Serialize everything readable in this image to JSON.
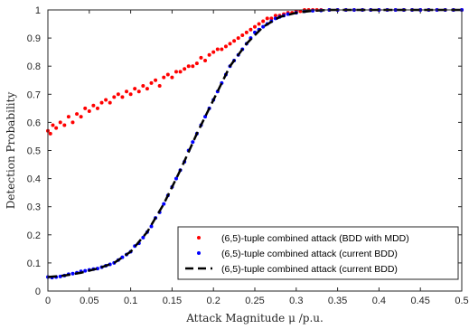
{
  "chart_data": {
    "type": "scatter",
    "xlabel": "Attack Magnitude μ /p.u.",
    "ylabel": "Detection Probability",
    "xlim": [
      0,
      0.5
    ],
    "ylim": [
      0,
      1
    ],
    "xticks": [
      "0",
      "0.05",
      "0.1",
      "0.15",
      "0.2",
      "0.25",
      "0.3",
      "0.35",
      "0.4",
      "0.45",
      "0.5"
    ],
    "yticks": [
      "0",
      "0.1",
      "0.2",
      "0.3",
      "0.4",
      "0.5",
      "0.6",
      "0.7",
      "0.8",
      "0.9",
      "1"
    ],
    "grid": false,
    "legend_position": "bottom-right",
    "series": [
      {
        "name": "(6,5)-tuple combined attack (BDD with MDD)",
        "style": "red-dots",
        "color": "#ff0000",
        "x": [
          0.0,
          0.003,
          0.006,
          0.01,
          0.015,
          0.02,
          0.025,
          0.03,
          0.035,
          0.04,
          0.045,
          0.05,
          0.055,
          0.06,
          0.065,
          0.07,
          0.075,
          0.08,
          0.085,
          0.09,
          0.095,
          0.1,
          0.105,
          0.11,
          0.115,
          0.12,
          0.125,
          0.13,
          0.135,
          0.14,
          0.145,
          0.15,
          0.155,
          0.16,
          0.165,
          0.17,
          0.175,
          0.18,
          0.185,
          0.19,
          0.195,
          0.2,
          0.205,
          0.21,
          0.215,
          0.22,
          0.225,
          0.23,
          0.235,
          0.24,
          0.245,
          0.25,
          0.255,
          0.26,
          0.265,
          0.27,
          0.275,
          0.28,
          0.285,
          0.29,
          0.295,
          0.3,
          0.305,
          0.31,
          0.315,
          0.32,
          0.325,
          0.33,
          0.34,
          0.35,
          0.36,
          0.37,
          0.38,
          0.39,
          0.4,
          0.41,
          0.42,
          0.43,
          0.44,
          0.45,
          0.46,
          0.47,
          0.48,
          0.49,
          0.5
        ],
        "y": [
          0.57,
          0.56,
          0.59,
          0.58,
          0.6,
          0.59,
          0.62,
          0.6,
          0.63,
          0.62,
          0.65,
          0.64,
          0.66,
          0.65,
          0.67,
          0.68,
          0.67,
          0.69,
          0.7,
          0.69,
          0.71,
          0.7,
          0.72,
          0.71,
          0.73,
          0.72,
          0.74,
          0.75,
          0.73,
          0.76,
          0.77,
          0.76,
          0.78,
          0.78,
          0.79,
          0.8,
          0.8,
          0.81,
          0.83,
          0.82,
          0.84,
          0.85,
          0.86,
          0.86,
          0.87,
          0.88,
          0.89,
          0.9,
          0.91,
          0.92,
          0.93,
          0.94,
          0.95,
          0.96,
          0.97,
          0.97,
          0.98,
          0.98,
          0.985,
          0.99,
          0.99,
          0.995,
          0.995,
          1.0,
          1.0,
          1.0,
          1.0,
          1.0,
          1.0,
          1.0,
          1.0,
          1.0,
          1.0,
          1.0,
          1.0,
          1.0,
          1.0,
          1.0,
          1.0,
          1.0,
          1.0,
          1.0,
          1.0,
          1.0,
          1.0
        ]
      },
      {
        "name": "(6,5)-tuple combined attack (current BDD)",
        "style": "blue-dots",
        "color": "#0000ff",
        "x": [
          0.0,
          0.005,
          0.01,
          0.015,
          0.02,
          0.025,
          0.03,
          0.035,
          0.04,
          0.045,
          0.05,
          0.055,
          0.06,
          0.065,
          0.07,
          0.075,
          0.08,
          0.085,
          0.09,
          0.095,
          0.1,
          0.105,
          0.11,
          0.115,
          0.12,
          0.125,
          0.13,
          0.135,
          0.14,
          0.145,
          0.15,
          0.155,
          0.16,
          0.165,
          0.17,
          0.175,
          0.18,
          0.185,
          0.19,
          0.195,
          0.2,
          0.205,
          0.21,
          0.215,
          0.22,
          0.225,
          0.23,
          0.235,
          0.24,
          0.245,
          0.25,
          0.255,
          0.26,
          0.265,
          0.27,
          0.275,
          0.28,
          0.285,
          0.29,
          0.3,
          0.31,
          0.32,
          0.33,
          0.34,
          0.35,
          0.36,
          0.37,
          0.38,
          0.39,
          0.4,
          0.41,
          0.42,
          0.43,
          0.44,
          0.45,
          0.46,
          0.47,
          0.48,
          0.49,
          0.5
        ],
        "y": [
          0.05,
          0.048,
          0.05,
          0.052,
          0.055,
          0.06,
          0.062,
          0.065,
          0.07,
          0.072,
          0.075,
          0.078,
          0.08,
          0.085,
          0.09,
          0.095,
          0.1,
          0.11,
          0.12,
          0.13,
          0.14,
          0.16,
          0.17,
          0.19,
          0.21,
          0.23,
          0.26,
          0.28,
          0.31,
          0.34,
          0.37,
          0.4,
          0.43,
          0.46,
          0.5,
          0.53,
          0.56,
          0.59,
          0.62,
          0.65,
          0.68,
          0.71,
          0.74,
          0.77,
          0.8,
          0.82,
          0.84,
          0.86,
          0.88,
          0.9,
          0.92,
          0.93,
          0.94,
          0.95,
          0.96,
          0.97,
          0.975,
          0.98,
          0.985,
          0.99,
          0.995,
          0.997,
          0.998,
          1.0,
          1.0,
          1.0,
          1.0,
          1.0,
          1.0,
          1.0,
          1.0,
          1.0,
          1.0,
          1.0,
          1.0,
          1.0,
          1.0,
          1.0,
          1.0,
          1.0
        ]
      },
      {
        "name": "(6,5)-tuple combined attack (current BDD)",
        "style": "black-dashed",
        "color": "#000000",
        "x": [
          0.0,
          0.02,
          0.04,
          0.06,
          0.08,
          0.1,
          0.12,
          0.14,
          0.16,
          0.18,
          0.2,
          0.22,
          0.24,
          0.26,
          0.28,
          0.3,
          0.32,
          0.34,
          0.36,
          0.4,
          0.45,
          0.5
        ],
        "y": [
          0.05,
          0.055,
          0.065,
          0.08,
          0.1,
          0.14,
          0.21,
          0.31,
          0.43,
          0.56,
          0.68,
          0.8,
          0.88,
          0.94,
          0.975,
          0.99,
          0.997,
          1.0,
          1.0,
          1.0,
          1.0,
          1.0
        ]
      }
    ]
  }
}
